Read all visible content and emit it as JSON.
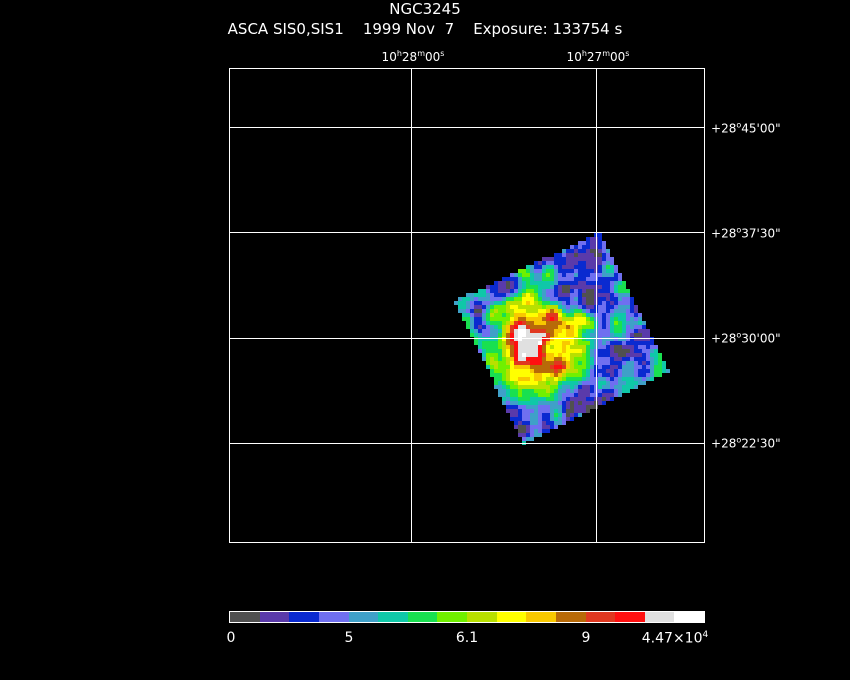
{
  "header": {
    "object": "NGC3245",
    "instrument": "ASCA SIS0,SIS1",
    "date": "1999 Nov  7",
    "exposure": "Exposure: 133754 s"
  },
  "ra_labels": [
    {
      "h": "10",
      "m": "28",
      "s": "00"
    },
    {
      "h": "10",
      "m": "27",
      "s": "00"
    }
  ],
  "dec_labels": [
    {
      "sign": "+",
      "d": "28",
      "m": "45",
      "s": "00"
    },
    {
      "sign": "+",
      "d": "28",
      "m": "37",
      "s": "30"
    },
    {
      "sign": "+",
      "d": "28",
      "m": "30",
      "s": "00"
    },
    {
      "sign": "+",
      "d": "28",
      "m": "22",
      "s": "30"
    }
  ],
  "colorbar": {
    "colors": [
      "#505050",
      "#5a3aaa",
      "#0a2ad0",
      "#6f6ff0",
      "#3fa0c8",
      "#0fc8a8",
      "#19e050",
      "#70f000",
      "#b8e000",
      "#ffff00",
      "#f8c800",
      "#b86a08",
      "#e03820",
      "#ff1010",
      "#e0e0e0",
      "#ffffff"
    ],
    "labels": [
      "0",
      "5",
      "6.1",
      "9"
    ],
    "max_label_base": "4.47×10",
    "max_label_exp": "4"
  }
}
